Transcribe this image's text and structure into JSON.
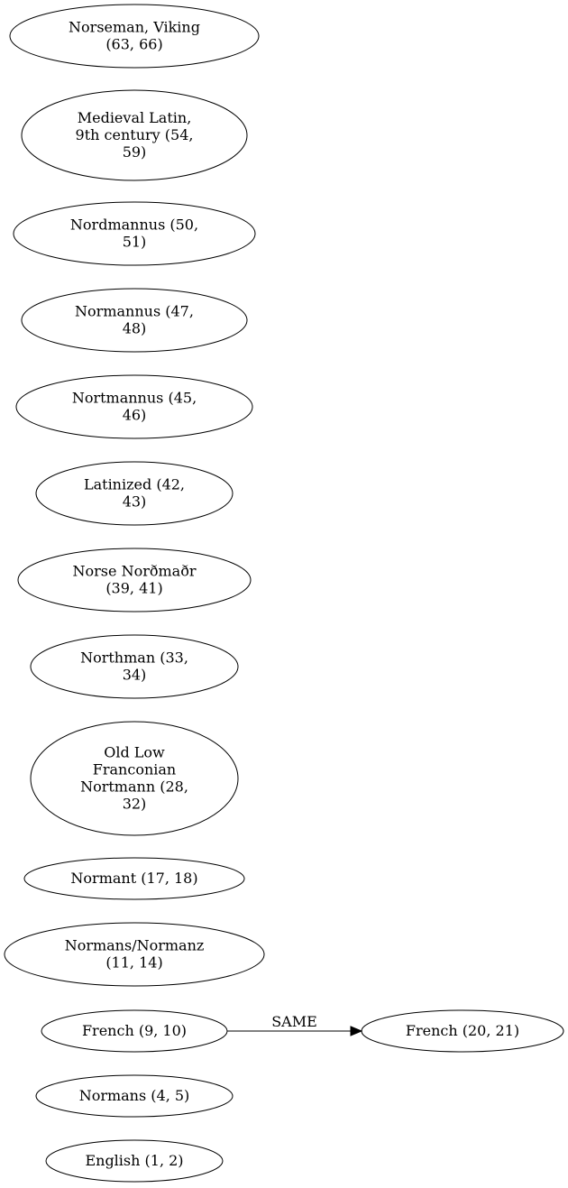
{
  "nodes": [
    {
      "id": "n1",
      "lines": [
        "Norseman, Viking",
        "(63, 66)"
      ]
    },
    {
      "id": "n2",
      "lines": [
        "Medieval Latin,",
        "9th century (54,",
        "59)"
      ]
    },
    {
      "id": "n3",
      "lines": [
        "Nordmannus (50,",
        "51)"
      ]
    },
    {
      "id": "n4",
      "lines": [
        "Normannus (47,",
        "48)"
      ]
    },
    {
      "id": "n5",
      "lines": [
        "Nortmannus (45,",
        "46)"
      ]
    },
    {
      "id": "n6",
      "lines": [
        "Latinized (42,",
        "43)"
      ]
    },
    {
      "id": "n7",
      "lines": [
        "Norse Norðmaðr",
        "(39, 41)"
      ]
    },
    {
      "id": "n8",
      "lines": [
        "Northman (33,",
        "34)"
      ]
    },
    {
      "id": "n9",
      "lines": [
        "Old Low",
        "Franconian",
        "Nortmann (28,",
        "32)"
      ]
    },
    {
      "id": "n10",
      "lines": [
        "Normant (17, 18)"
      ]
    },
    {
      "id": "n11",
      "lines": [
        "Normans/Normanz",
        "(11, 14)"
      ]
    },
    {
      "id": "n12",
      "lines": [
        "French (9, 10)"
      ]
    },
    {
      "id": "n13",
      "lines": [
        "French (20, 21)"
      ]
    },
    {
      "id": "n14",
      "lines": [
        "Normans (4, 5)"
      ]
    },
    {
      "id": "n15",
      "lines": [
        "English (1, 2)"
      ]
    }
  ],
  "edges": [
    {
      "from": "n12",
      "to": "n13",
      "label": "SAME"
    }
  ]
}
